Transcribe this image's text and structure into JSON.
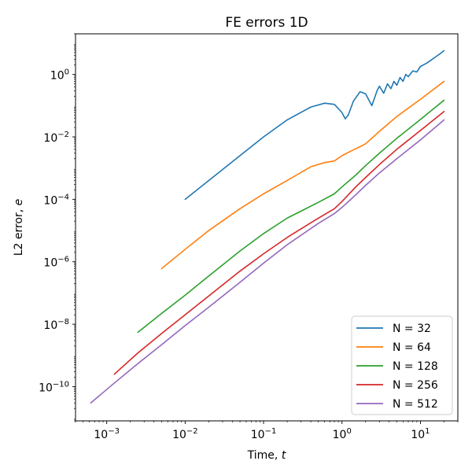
{
  "chart_data": {
    "type": "line",
    "title": "FE errors 1D",
    "xlabel": "Time, t",
    "ylabel": "L2 error, e",
    "xscale": "log",
    "yscale": "log",
    "xlim": [
      0.0004,
      30
    ],
    "ylim": [
      8e-12,
      20
    ],
    "xticks": [
      0.001,
      0.01,
      0.1,
      1,
      10
    ],
    "xtick_labels": [
      [
        "10",
        "−3"
      ],
      [
        "10",
        "−2"
      ],
      [
        "10",
        "−1"
      ],
      [
        "10",
        "0"
      ],
      [
        "10",
        "1"
      ]
    ],
    "yticks": [
      1e-10,
      1e-08,
      1e-06,
      0.0001,
      0.01,
      1
    ],
    "ytick_labels": [
      [
        "10",
        "−10"
      ],
      [
        "10",
        "−8"
      ],
      [
        "10",
        "−6"
      ],
      [
        "10",
        "−4"
      ],
      [
        "10",
        "−2"
      ],
      [
        "10",
        "0"
      ]
    ],
    "grid": false,
    "legend_position": "lower-right",
    "series": [
      {
        "name": "N = 32",
        "color": "#1f77b4",
        "x": [
          0.01,
          0.02,
          0.05,
          0.1,
          0.2,
          0.4,
          0.6,
          0.8,
          1.0,
          1.1,
          1.2,
          1.4,
          1.7,
          2.0,
          2.4,
          2.8,
          3.0,
          3.4,
          3.8,
          4.2,
          4.6,
          5.0,
          5.5,
          6.0,
          6.5,
          7.0,
          8.0,
          9.0,
          10,
          12,
          14,
          16,
          18,
          20
        ],
        "y": [
          0.0001,
          0.0004,
          0.0025,
          0.01,
          0.035,
          0.09,
          0.12,
          0.11,
          0.06,
          0.038,
          0.05,
          0.14,
          0.28,
          0.24,
          0.1,
          0.3,
          0.42,
          0.25,
          0.5,
          0.35,
          0.6,
          0.45,
          0.8,
          0.6,
          1.0,
          0.85,
          1.3,
          1.2,
          1.8,
          2.3,
          3.0,
          3.8,
          4.7,
          5.8
        ]
      },
      {
        "name": "N = 64",
        "color": "#ff7f0e",
        "x": [
          0.005,
          0.01,
          0.02,
          0.05,
          0.1,
          0.2,
          0.4,
          0.6,
          0.8,
          1.0,
          1.3,
          1.6,
          2.0,
          3.0,
          5.0,
          10,
          20
        ],
        "y": [
          6e-07,
          2.5e-06,
          1e-05,
          5e-05,
          0.00015,
          0.0004,
          0.0011,
          0.0015,
          0.0017,
          0.0025,
          0.0035,
          0.0045,
          0.006,
          0.015,
          0.045,
          0.16,
          0.6
        ]
      },
      {
        "name": "N = 128",
        "color": "#2ca02c",
        "x": [
          0.0025,
          0.005,
          0.01,
          0.02,
          0.05,
          0.1,
          0.2,
          0.5,
          0.8,
          1.0,
          1.5,
          2.0,
          3.0,
          5.0,
          10,
          20
        ],
        "y": [
          5.5e-09,
          2.2e-08,
          8.5e-08,
          3.5e-07,
          2.2e-06,
          8e-06,
          2.5e-05,
          8e-05,
          0.00015,
          0.00025,
          0.0006,
          0.0012,
          0.003,
          0.009,
          0.036,
          0.15
        ]
      },
      {
        "name": "N = 256",
        "color": "#d62728",
        "x": [
          0.00125,
          0.0025,
          0.005,
          0.01,
          0.02,
          0.05,
          0.1,
          0.2,
          0.5,
          0.8,
          1.0,
          1.5,
          2.0,
          3.0,
          5.0,
          10,
          20
        ],
        "y": [
          2.5e-10,
          1.2e-09,
          5e-09,
          2e-08,
          8e-08,
          5e-07,
          1.8e-06,
          6e-06,
          2.5e-05,
          5e-05,
          8.5e-05,
          0.00025,
          0.0005,
          0.0013,
          0.004,
          0.016,
          0.065
        ]
      },
      {
        "name": "N = 512",
        "color": "#9467bd",
        "x": [
          0.000625,
          0.00125,
          0.0025,
          0.005,
          0.01,
          0.02,
          0.05,
          0.1,
          0.2,
          0.5,
          0.8,
          1.0,
          1.5,
          2.0,
          3.0,
          5.0,
          10,
          20
        ],
        "y": [
          3e-11,
          1.3e-10,
          5.5e-10,
          2.2e-09,
          9e-09,
          3.5e-08,
          2.2e-07,
          9e-07,
          3.5e-06,
          1.7e-05,
          3.5e-05,
          5.5e-05,
          0.00014,
          0.00028,
          0.0007,
          0.002,
          0.008,
          0.035
        ]
      }
    ]
  }
}
